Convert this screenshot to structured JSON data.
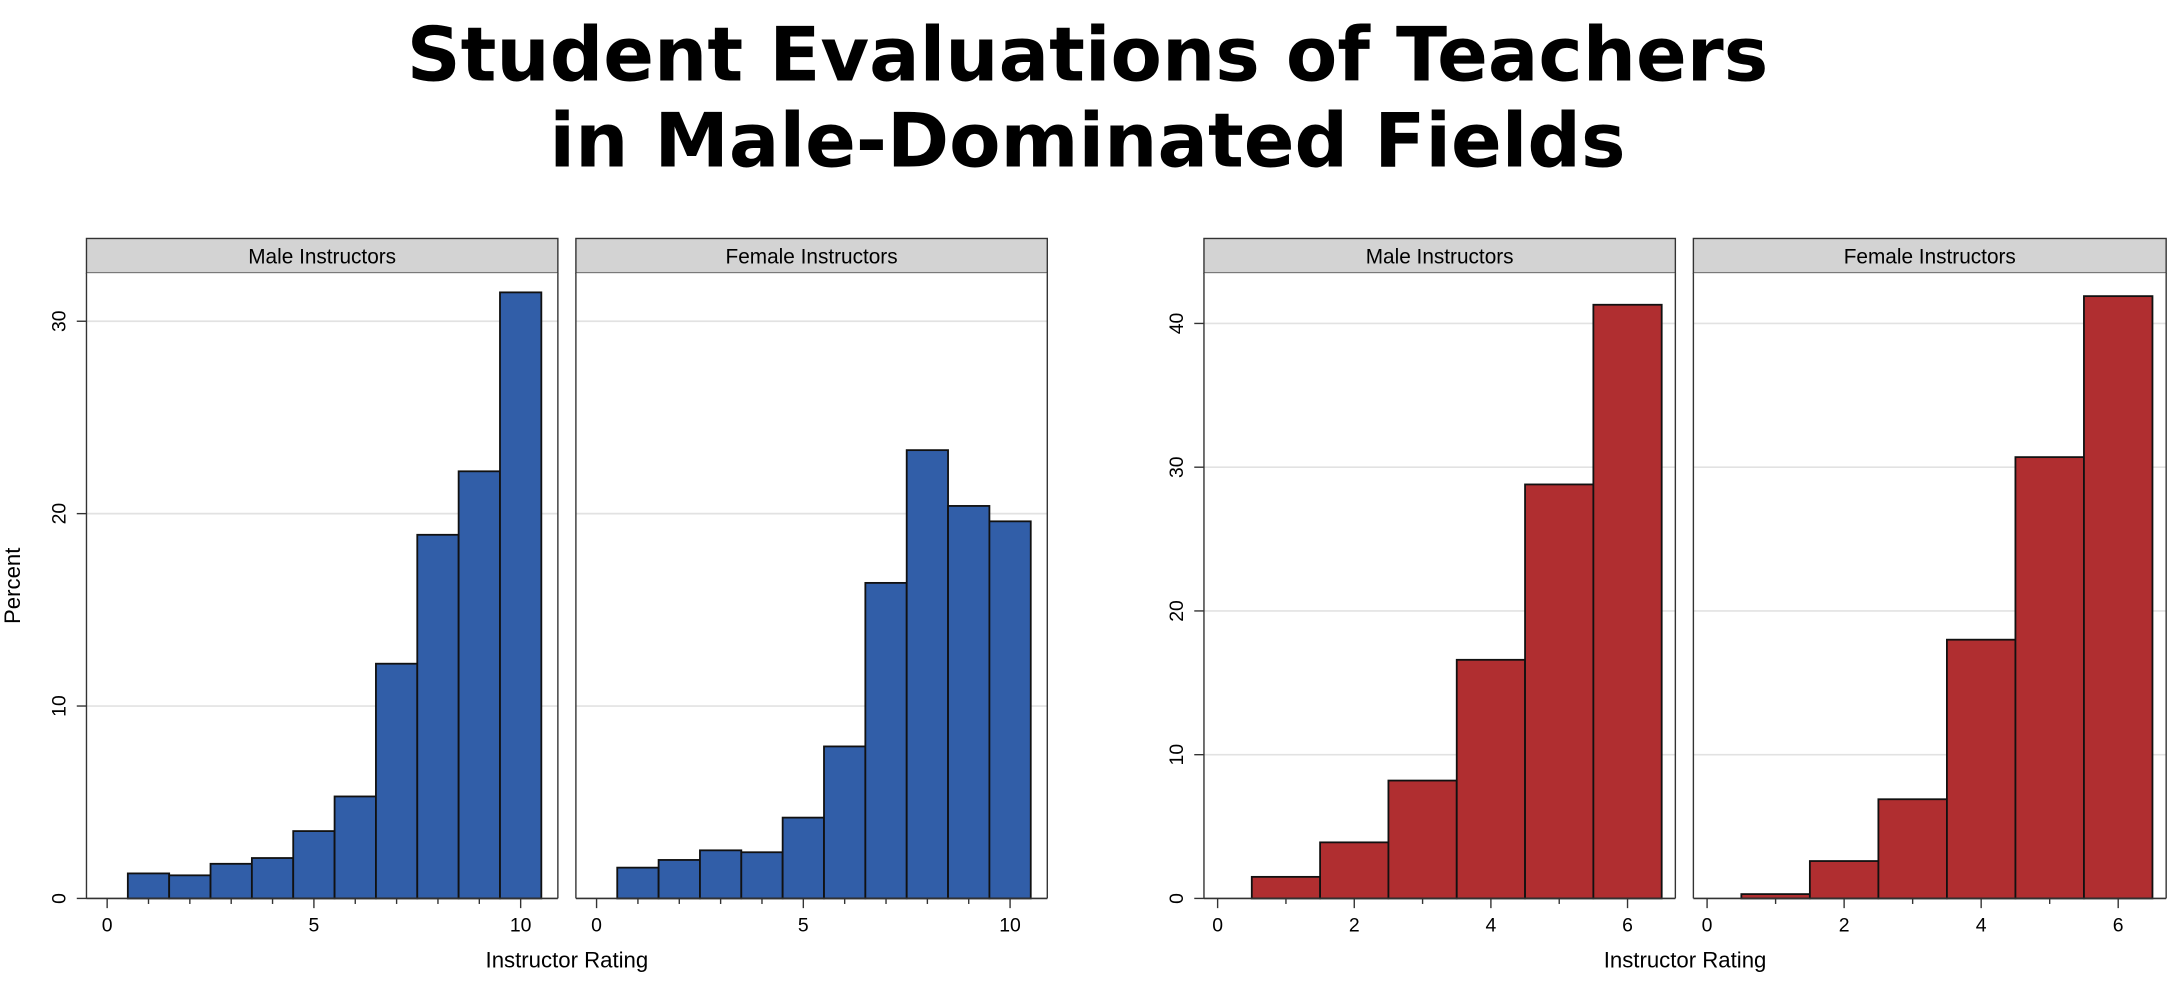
{
  "title_lines": [
    "Student Evaluations of Teachers",
    "in Male-Dominated Fields"
  ],
  "chart_data": [
    {
      "type": "bar",
      "subtype": "histogram",
      "ylabel": "Percent",
      "xlabel": "Instructor Rating",
      "ylim": [
        0,
        32.5
      ],
      "yticks": [
        0,
        10,
        20,
        30
      ],
      "xlim": [
        -0.5,
        10.9
      ],
      "xticks": [
        0,
        5,
        10
      ],
      "grid": true,
      "color": "#315ea8",
      "panels": [
        {
          "label": "Male Instructors",
          "bins": [
            1,
            2,
            3,
            4,
            5,
            6,
            7,
            8,
            9,
            10
          ],
          "values": [
            1.3,
            1.2,
            1.8,
            2.1,
            3.5,
            5.3,
            12.2,
            18.9,
            22.2,
            31.5
          ]
        },
        {
          "label": "Female Instructors",
          "bins": [
            1,
            2,
            3,
            4,
            5,
            6,
            7,
            8,
            9,
            10
          ],
          "values": [
            1.6,
            2.0,
            2.5,
            2.4,
            4.2,
            7.9,
            16.4,
            23.3,
            20.4,
            19.6
          ]
        }
      ]
    },
    {
      "type": "bar",
      "subtype": "histogram",
      "ylabel": "",
      "xlabel": "Instructor Rating",
      "ylim": [
        0,
        43.5
      ],
      "yticks": [
        0,
        10,
        20,
        30,
        40
      ],
      "xlim": [
        -0.2,
        6.7
      ],
      "xticks": [
        0,
        2,
        4,
        6
      ],
      "grid": true,
      "color": "#b02e30",
      "panels": [
        {
          "label": "Male Instructors",
          "bins": [
            1,
            2,
            3,
            4,
            5,
            6
          ],
          "values": [
            1.5,
            3.9,
            8.2,
            16.6,
            28.8,
            41.3
          ]
        },
        {
          "label": "Female Instructors",
          "bins": [
            1,
            2,
            3,
            4,
            5,
            6
          ],
          "values": [
            0.3,
            2.6,
            6.9,
            18.0,
            30.7,
            41.9
          ]
        }
      ]
    }
  ]
}
